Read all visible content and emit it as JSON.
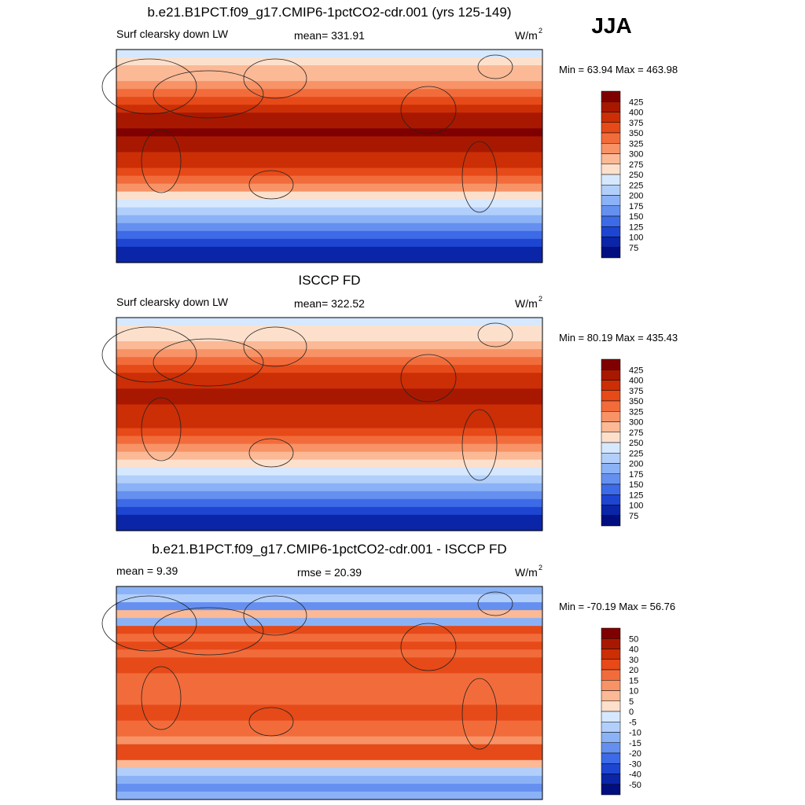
{
  "header": {
    "season": "JJA"
  },
  "panels": [
    {
      "title": "b.e21.B1PCT.f09_g17.CMIP6-1pctCO2-cdr.001 (yrs 125-149)",
      "left_label": "Surf clearsky down LW",
      "center_label": "mean= 331.91",
      "units": "W/m",
      "units_exp": "2",
      "minmax": "Min =  63.94 Max = 463.98",
      "colorbar": {
        "labels": [
          "425",
          "400",
          "375",
          "350",
          "325",
          "300",
          "275",
          "250",
          "225",
          "200",
          "175",
          "150",
          "125",
          "100",
          "75"
        ],
        "colors": [
          "#7f0000",
          "#a81800",
          "#cc2e06",
          "#e64a18",
          "#f26c3b",
          "#f79366",
          "#fbb996",
          "#fde0cc",
          "#d6e8fd",
          "#b2cffb",
          "#8bb2f6",
          "#6590f0",
          "#3d6ae6",
          "#1d45d2",
          "#0b25a8",
          "#000e80"
        ]
      }
    },
    {
      "title": "ISCCP FD",
      "left_label": "Surf clearsky down LW",
      "center_label": "mean= 322.52",
      "units": "W/m",
      "units_exp": "2",
      "minmax": "Min =  80.19 Max = 435.43",
      "colorbar": {
        "labels": [
          "425",
          "400",
          "375",
          "350",
          "325",
          "300",
          "275",
          "250",
          "225",
          "200",
          "175",
          "150",
          "125",
          "100",
          "75"
        ],
        "colors": [
          "#7f0000",
          "#a81800",
          "#cc2e06",
          "#e64a18",
          "#f26c3b",
          "#f79366",
          "#fbb996",
          "#fde0cc",
          "#d6e8fd",
          "#b2cffb",
          "#8bb2f6",
          "#6590f0",
          "#3d6ae6",
          "#1d45d2",
          "#0b25a8",
          "#000e80"
        ]
      }
    },
    {
      "title": "b.e21.B1PCT.f09_g17.CMIP6-1pctCO2-cdr.001 - ISCCP FD",
      "left_label": "mean =   9.39",
      "center_label": "rmse =  20.39",
      "units": "W/m",
      "units_exp": "2",
      "minmax": "Min = -70.19 Max =  56.76",
      "colorbar": {
        "labels": [
          "50",
          "40",
          "30",
          "20",
          "15",
          "10",
          "5",
          "0",
          "-5",
          "-10",
          "-15",
          "-20",
          "-30",
          "-40",
          "-50"
        ],
        "colors": [
          "#7f0000",
          "#a81800",
          "#cc2e06",
          "#e64a18",
          "#f26c3b",
          "#f79366",
          "#fbb996",
          "#fde0cc",
          "#d6e8fd",
          "#b2cffb",
          "#8bb2f6",
          "#6590f0",
          "#3d6ae6",
          "#1d45d2",
          "#0b25a8",
          "#000e80"
        ]
      }
    }
  ]
}
